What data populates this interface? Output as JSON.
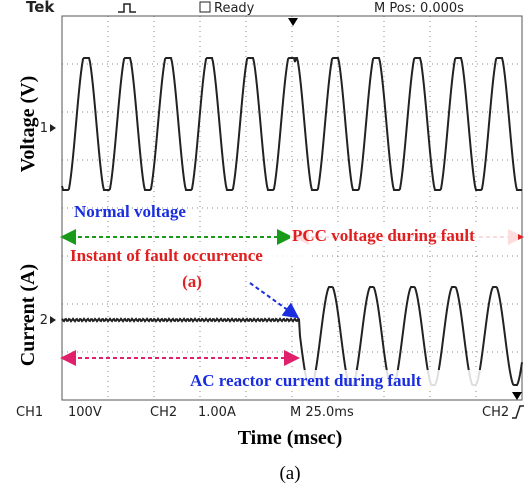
{
  "header": {
    "brand": "Tek",
    "status": "Ready",
    "position": "M Pos: 0.000s"
  },
  "axes": {
    "y_top": "Voltage (V)",
    "y_bottom": "Current (A)",
    "x": "Time (msec)"
  },
  "markers": {
    "ch1": "1",
    "ch2": "2"
  },
  "annotations": {
    "normal": "Normal voltage",
    "pcc": "PCC voltage during fault",
    "instant": "Instant of fault occurrence",
    "instant_tag": "(a)",
    "reactor": "AC reactor current during fault"
  },
  "footer": {
    "ch1": "CH1",
    "ch1_scale": "100V",
    "ch2": "CH2",
    "ch2_scale": "1.00A",
    "timebase": "M 25.0ms",
    "trigger": "CH2"
  },
  "caption": "(a)"
}
